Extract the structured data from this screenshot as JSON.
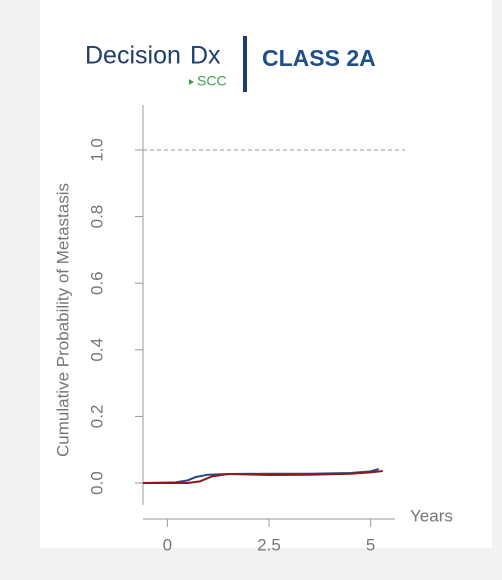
{
  "chart_data": {
    "type": "line",
    "brand": "Decision",
    "brand_suffix": "Dx",
    "brand_sub": "SCC",
    "title": "CLASS 2A",
    "y_label": "Cumulative Probability of Metastasis",
    "x_label": "Years",
    "xlim": [
      -0.6,
      5.6
    ],
    "xticks": [
      0,
      2.5,
      5
    ],
    "ylim": [
      -0.066,
      1.135
    ],
    "yticks": [
      {
        "value": 0,
        "label": "0.0"
      },
      {
        "value": 0.2,
        "label": "0.2"
      },
      {
        "value": 0.4,
        "label": "0.4"
      },
      {
        "value": 0.6,
        "label": "0.6"
      },
      {
        "value": 0.8,
        "label": "0.8"
      },
      {
        "value": 1,
        "label": "1.0"
      }
    ],
    "reference_line": 1,
    "series": [
      {
        "color": "#1f4e8c",
        "x": [
          -0.6,
          0.2,
          0.5,
          0.7,
          1.0,
          1.5,
          2.5,
          3.5,
          4.5,
          5.0,
          5.2
        ],
        "values": [
          0.0,
          0.002,
          0.008,
          0.018,
          0.025,
          0.027,
          0.028,
          0.028,
          0.03,
          0.035,
          0.042
        ]
      },
      {
        "color": "#8b1a1a",
        "x": [
          -0.6,
          0.5,
          0.8,
          1.1,
          1.5,
          2.5,
          3.5,
          4.5,
          5.0,
          5.3
        ],
        "values": [
          0.0,
          0.0,
          0.005,
          0.02,
          0.027,
          0.024,
          0.025,
          0.028,
          0.032,
          0.036
        ]
      }
    ]
  }
}
